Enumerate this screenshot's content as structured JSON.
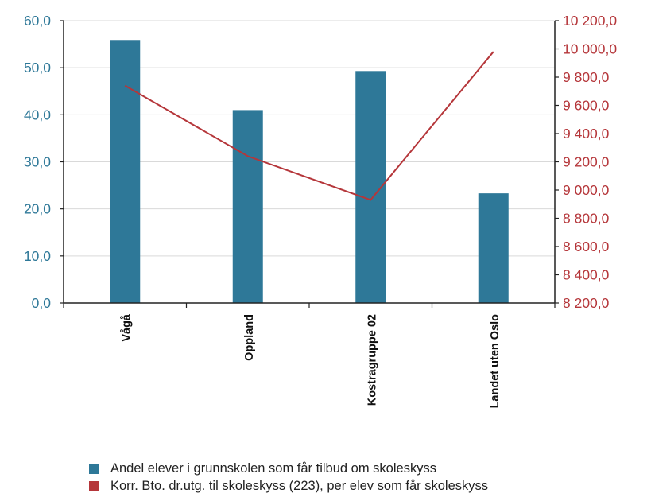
{
  "chart_data": {
    "type": "bar",
    "categories": [
      "Vågå",
      "Oppland",
      "Kostragruppe 02",
      "Landet uten Oslo"
    ],
    "y_left": {
      "ticks": [
        "0,0",
        "10,0",
        "20,0",
        "30,0",
        "40,0",
        "50,0",
        "60,0"
      ],
      "range": [
        0,
        60
      ]
    },
    "y_right": {
      "ticks": [
        "8 200,0",
        "8 400,0",
        "8 600,0",
        "8 800,0",
        "9 000,0",
        "9 200,0",
        "9 400,0",
        "9 600,0",
        "9 800,0",
        "10 000,0",
        "10 200,0"
      ],
      "range": [
        8200,
        10200
      ]
    },
    "series": [
      {
        "name": "Andel elever i grunnskolen som får tilbud om skoleskyss",
        "type": "bar",
        "axis": "left",
        "color": "#2e7898",
        "values": [
          55.9,
          41.0,
          49.3,
          23.3
        ]
      },
      {
        "name": "Korr. Bto. dr.utg.  til skoleskyss (223), per elev som får skoleskyss",
        "type": "line",
        "axis": "right",
        "color": "#b5363a",
        "values": [
          9740,
          9240,
          8930,
          9980
        ]
      }
    ],
    "grid": true,
    "legend_position": "bottom"
  },
  "colors": {
    "left_axis_text": "#2e7898",
    "right_axis_text": "#b5363a",
    "gridline": "#d9d9d9",
    "axis_line": "#222222"
  }
}
